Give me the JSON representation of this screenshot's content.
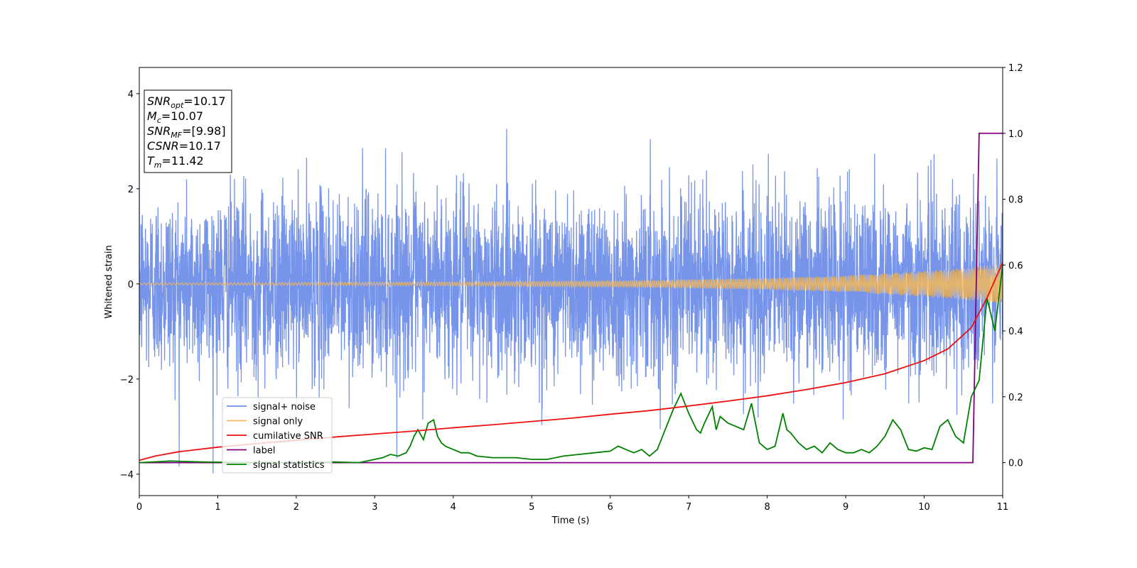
{
  "chart_data": {
    "type": "line",
    "xlabel": "Time (s)",
    "ylabel": "Whitened strain",
    "xlim": [
      0,
      11
    ],
    "ylim_left": [
      -4.45,
      4.55
    ],
    "ylim_right": [
      -0.1,
      1.2
    ],
    "x_ticks": [
      "0",
      "1",
      "2",
      "3",
      "4",
      "5",
      "6",
      "7",
      "8",
      "9",
      "10",
      "11"
    ],
    "y_left_ticks": [
      "4",
      "2",
      "0",
      "−2",
      "−4"
    ],
    "y_left_tick_values": [
      4,
      2,
      0,
      -2,
      -4
    ],
    "y_right_ticks": [
      "1.2",
      "1.0",
      "0.8",
      "0.6",
      "0.4",
      "0.2",
      "0.0"
    ],
    "y_right_tick_values": [
      1.2,
      1.0,
      0.8,
      0.6,
      0.4,
      0.2,
      0.0
    ],
    "grid": false,
    "legend_position": "lower-left",
    "info_box": {
      "position": "top-left",
      "lines": [
        {
          "main": "SNR",
          "sub": "opt",
          "value": "=10.17"
        },
        {
          "main": "M",
          "sub": "c",
          "value": "=10.07"
        },
        {
          "main": "SNR",
          "sub": "MF",
          "value": "=[9.98]"
        },
        {
          "main": "CSNR",
          "sub": "",
          "value": "=10.17"
        },
        {
          "main": "T",
          "sub": "m",
          "value": "=11.42"
        }
      ]
    },
    "series": [
      {
        "name": "signal+ noise",
        "axis": "left",
        "color": "#6f8ee8",
        "noise_std": 0.95,
        "approx_range": [
          -4.05,
          4.2
        ],
        "note_values": "dense noisy trace sampled across 0-11 s"
      },
      {
        "name": "signal only",
        "axis": "left",
        "color": "#f5b85a",
        "envelope": [
          [
            0,
            0.02
          ],
          [
            2,
            0.03
          ],
          [
            4,
            0.04
          ],
          [
            6,
            0.06
          ],
          [
            8,
            0.12
          ],
          [
            9,
            0.17
          ],
          [
            10,
            0.27
          ],
          [
            10.5,
            0.33
          ],
          [
            11,
            0.42
          ]
        ]
      },
      {
        "name": "cumilative SNR",
        "axis": "right",
        "color": "#ee1111",
        "x": [
          0,
          0.2,
          0.5,
          1,
          1.5,
          2,
          2.5,
          3,
          3.5,
          4,
          4.5,
          5,
          5.5,
          6,
          6.5,
          7,
          7.5,
          8,
          8.5,
          9,
          9.5,
          10,
          10.3,
          10.6,
          10.8,
          11
        ],
        "y": [
          0.007,
          0.02,
          0.033,
          0.047,
          0.058,
          0.068,
          0.078,
          0.087,
          0.096,
          0.106,
          0.115,
          0.125,
          0.135,
          0.147,
          0.158,
          0.172,
          0.187,
          0.203,
          0.222,
          0.243,
          0.27,
          0.31,
          0.345,
          0.41,
          0.5,
          0.608
        ]
      },
      {
        "name": "label",
        "axis": "right",
        "color": "#800080",
        "x": [
          0,
          10.62,
          10.7,
          11
        ],
        "y": [
          0.0,
          0.0,
          1.0,
          1.0
        ]
      },
      {
        "name": "signal statistics",
        "axis": "right",
        "color": "#008000",
        "x": [
          0,
          0.4,
          0.8,
          1.5,
          2.0,
          2.5,
          2.8,
          3.0,
          3.1,
          3.2,
          3.3,
          3.4,
          3.45,
          3.5,
          3.55,
          3.62,
          3.68,
          3.75,
          3.8,
          3.85,
          3.9,
          4.0,
          4.1,
          4.2,
          4.3,
          4.5,
          4.6,
          4.8,
          5.0,
          5.2,
          5.4,
          5.6,
          5.8,
          6.0,
          6.1,
          6.2,
          6.3,
          6.4,
          6.5,
          6.6,
          6.7,
          6.8,
          6.9,
          7.0,
          7.1,
          7.15,
          7.2,
          7.3,
          7.35,
          7.4,
          7.5,
          7.6,
          7.7,
          7.8,
          7.85,
          7.9,
          8.0,
          8.1,
          8.2,
          8.25,
          8.3,
          8.4,
          8.5,
          8.6,
          8.7,
          8.8,
          8.9,
          9.0,
          9.1,
          9.2,
          9.3,
          9.4,
          9.5,
          9.6,
          9.7,
          9.8,
          9.9,
          10.0,
          10.1,
          10.2,
          10.3,
          10.4,
          10.5,
          10.6,
          10.7,
          10.8,
          10.9,
          11.0
        ],
        "y": [
          0.0,
          0.005,
          0.002,
          0.0,
          0.0,
          0.002,
          0.0,
          0.01,
          0.015,
          0.025,
          0.02,
          0.03,
          0.05,
          0.08,
          0.1,
          0.07,
          0.12,
          0.13,
          0.08,
          0.06,
          0.05,
          0.04,
          0.03,
          0.03,
          0.02,
          0.015,
          0.015,
          0.015,
          0.01,
          0.01,
          0.02,
          0.025,
          0.03,
          0.035,
          0.05,
          0.04,
          0.03,
          0.04,
          0.02,
          0.04,
          0.1,
          0.16,
          0.21,
          0.15,
          0.1,
          0.09,
          0.12,
          0.17,
          0.1,
          0.14,
          0.12,
          0.11,
          0.1,
          0.18,
          0.12,
          0.06,
          0.04,
          0.05,
          0.15,
          0.1,
          0.09,
          0.06,
          0.04,
          0.05,
          0.03,
          0.06,
          0.04,
          0.03,
          0.03,
          0.04,
          0.03,
          0.05,
          0.08,
          0.13,
          0.1,
          0.04,
          0.035,
          0.045,
          0.04,
          0.11,
          0.13,
          0.08,
          0.06,
          0.2,
          0.25,
          0.5,
          0.4,
          0.6
        ]
      }
    ]
  }
}
